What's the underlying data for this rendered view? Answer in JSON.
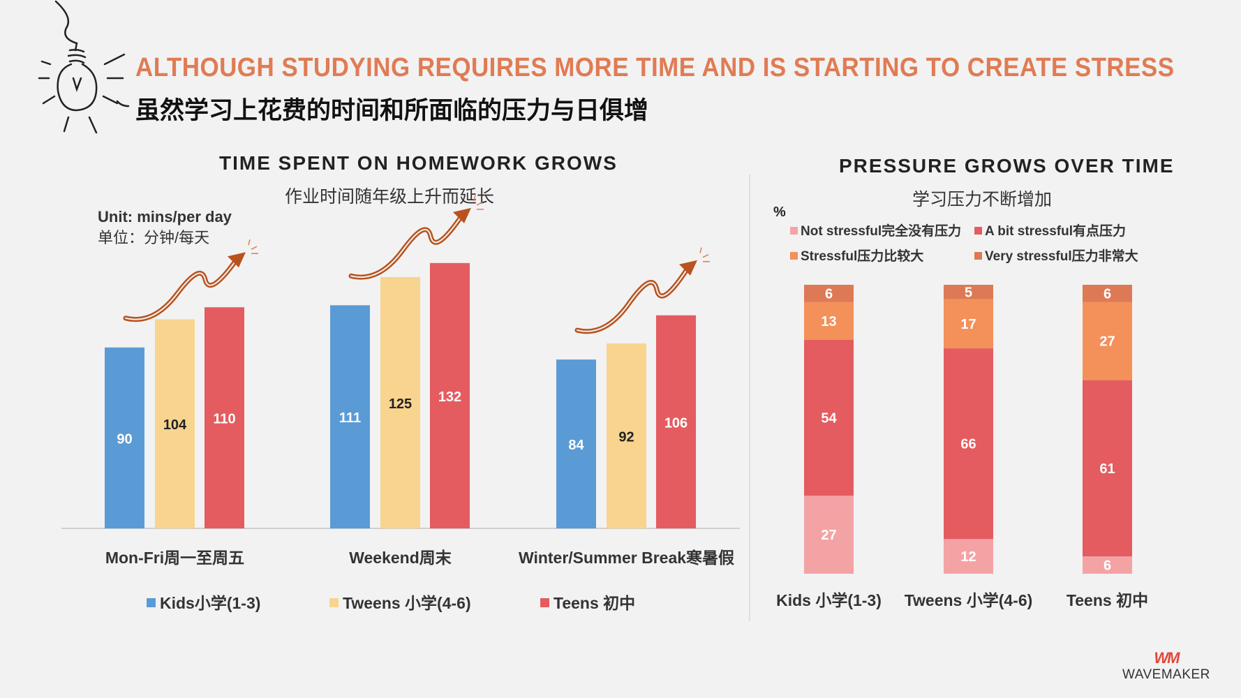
{
  "header": {
    "title_en": "ALTHOUGH STUDYING REQUIRES MORE TIME AND IS STARTING TO CREATE STRESS",
    "title_zh": "虽然学习上花费的时间和所面临的压力与日俱增"
  },
  "left": {
    "title": "TIME SPENT ON HOMEWORK GROWS",
    "subtitle": "作业时间随年级上升而延长",
    "unit_en": "Unit: mins/per day",
    "unit_zh": "单位：分钟/每天"
  },
  "right": {
    "title": "PRESSURE GROWS OVER TIME",
    "subtitle": "学习压力不断增加",
    "percent_label": "%"
  },
  "colors": {
    "kids": "#5b9bd5",
    "tweens": "#f8d48f",
    "teens": "#e45c5f",
    "not_stressful": "#f4a3a5",
    "a_bit": "#e45c5f",
    "stressful": "#f4905a",
    "very": "#dd7a55",
    "accent": "#e07b54"
  },
  "chart_data": [
    {
      "type": "bar",
      "title": "TIME SPENT ON HOMEWORK GROWS",
      "ylabel": "Unit: mins/per day",
      "ylim": [
        0,
        140
      ],
      "categories": [
        "Mon-Fri周一至周五",
        "Weekend周末",
        "Winter/Summer Break寒暑假"
      ],
      "series": [
        {
          "name": "Kids小学(1-3)",
          "values": [
            90,
            111,
            84
          ]
        },
        {
          "name": "Tweens 小学(4-6)",
          "values": [
            104,
            125,
            92
          ]
        },
        {
          "name": "Teens 初中",
          "values": [
            110,
            132,
            106
          ]
        }
      ],
      "legend": "bottom"
    },
    {
      "type": "bar",
      "stacked": true,
      "title": "PRESSURE GROWS OVER TIME",
      "ylabel": "%",
      "ylim": [
        0,
        100
      ],
      "categories": [
        "Kids 小学(1-3)",
        "Tweens 小学(4-6)",
        "Teens 初中"
      ],
      "series": [
        {
          "name": "Not stressful完全没有压力",
          "values": [
            27,
            12,
            6
          ]
        },
        {
          "name": "A bit stressful有点压力",
          "values": [
            54,
            66,
            61
          ]
        },
        {
          "name": "Stressful压力比较大",
          "values": [
            13,
            17,
            27
          ]
        },
        {
          "name": "Very stressful压力非常大",
          "values": [
            6,
            5,
            6
          ]
        }
      ],
      "legend": "top"
    }
  ],
  "logo": {
    "mark": "WM",
    "name": "WAVEMAKER"
  }
}
